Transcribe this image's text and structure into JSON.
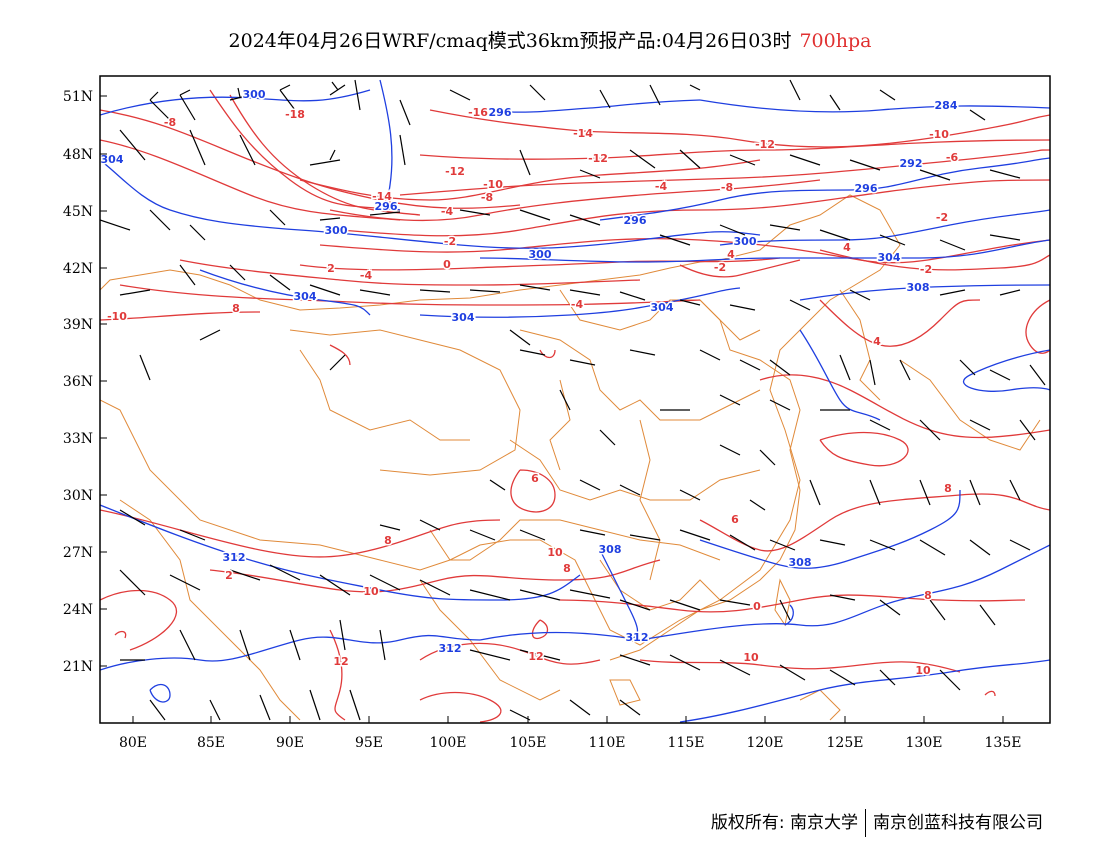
{
  "title": {
    "text": "2024年04月26日WRF/cmaq模式36km预报产品:04月26日03时",
    "level": "700hpa"
  },
  "colors": {
    "temperature": "#e03a3a",
    "geopotential": "#1f3fe0",
    "border": "#e08a3a",
    "wind": "#000000",
    "level_text": "#e03030"
  },
  "map": {
    "lon_labels": [
      "80E",
      "85E",
      "90E",
      "95E",
      "100E",
      "105E",
      "110E",
      "115E",
      "120E",
      "125E",
      "130E",
      "135E"
    ],
    "lat_labels": [
      "51N",
      "48N",
      "45N",
      "42N",
      "39N",
      "36N",
      "33N",
      "30N",
      "27N",
      "24N",
      "21N"
    ],
    "temperature_labels": [
      "-8",
      "-18",
      "-16",
      "-14",
      "-12",
      "-10",
      "-8",
      "-14",
      "-12",
      "-4",
      "-10",
      "-8",
      "-12",
      "-2",
      "-4",
      "0",
      "-2",
      "-4",
      "2",
      "-4",
      "-2",
      "4",
      "8",
      "4",
      "-10",
      "4",
      "6",
      "6",
      "8",
      "10",
      "8",
      "8",
      "2",
      "10",
      "12",
      "10",
      "12",
      "8",
      "10",
      "0",
      "-2",
      "-6"
    ],
    "geopotential_labels": [
      "300",
      "304",
      "296",
      "296",
      "300",
      "296",
      "300",
      "300",
      "304",
      "304",
      "304",
      "292",
      "296",
      "308",
      "304",
      "312",
      "308",
      "308",
      "312",
      "312",
      "284"
    ],
    "legend_items": []
  },
  "footer": {
    "left": "版权所有: 南京大学",
    "right": "南京创蓝科技有限公司"
  }
}
